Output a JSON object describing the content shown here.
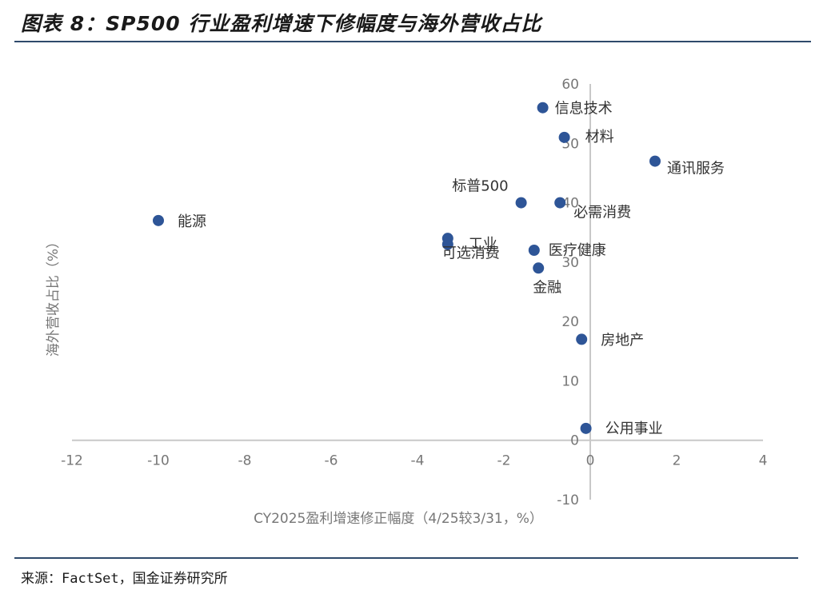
{
  "header": {
    "title": "图表 8：SP500 行业盈利增速下修幅度与海外营收占比"
  },
  "footer": {
    "source": "来源：FactSet，国金证券研究所"
  },
  "chart_data": {
    "type": "scatter",
    "xlabel": "CY2025盈利增速修正幅度（4/25较3/31，%）",
    "ylabel": "海外营收占比（%）",
    "xlim": [
      -12,
      4
    ],
    "ylim": [
      -10,
      60
    ],
    "xticks": [
      -12,
      -10,
      -8,
      -6,
      -4,
      -2,
      0,
      2,
      4
    ],
    "yticks": [
      -10,
      0,
      10,
      20,
      30,
      40,
      50,
      60
    ],
    "grid": false,
    "color": "#2e5597",
    "points": [
      {
        "label": "信息技术",
        "x": -1.1,
        "y": 56
      },
      {
        "label": "材料",
        "x": -0.6,
        "y": 51
      },
      {
        "label": "通讯服务",
        "x": 1.5,
        "y": 47
      },
      {
        "label": "标普500",
        "x": -1.6,
        "y": 40
      },
      {
        "label": "必需消费",
        "x": -0.7,
        "y": 40
      },
      {
        "label": "能源",
        "x": -10.0,
        "y": 37
      },
      {
        "label": "工业",
        "x": -3.3,
        "y": 34
      },
      {
        "label": "可选消费",
        "x": -3.3,
        "y": 33
      },
      {
        "label": "医疗健康",
        "x": -1.3,
        "y": 32
      },
      {
        "label": "金融",
        "x": -1.2,
        "y": 29
      },
      {
        "label": "房地产",
        "x": -0.2,
        "y": 17
      },
      {
        "label": "公用事业",
        "x": -0.1,
        "y": 2
      }
    ]
  }
}
